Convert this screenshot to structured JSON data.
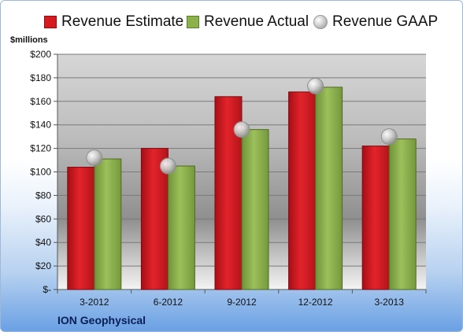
{
  "chart_data": {
    "type": "bar",
    "unit_label": "$millions",
    "categories": [
      "3-2012",
      "6-2012",
      "9-2012",
      "12-2012",
      "3-2013"
    ],
    "series": [
      {
        "name": "Revenue Estimate",
        "kind": "bar",
        "color": "#d71920",
        "values": [
          104,
          120,
          164,
          168,
          122
        ]
      },
      {
        "name": "Revenue Actual",
        "kind": "bar",
        "color": "#8cb14b",
        "values": [
          111,
          105,
          136,
          172,
          128
        ]
      },
      {
        "name": "Revenue GAAP",
        "kind": "marker",
        "color": "#b0b0b0",
        "values": [
          112,
          105,
          136,
          173,
          130
        ]
      }
    ],
    "ylim": [
      0,
      200
    ],
    "yticks": [
      0,
      20,
      40,
      60,
      80,
      100,
      120,
      140,
      160,
      180,
      200
    ],
    "ytick_labels": [
      "$-",
      "$20",
      "$40",
      "$60",
      "$80",
      "$100",
      "$120",
      "$140",
      "$160",
      "$180",
      "$200"
    ],
    "grid": true,
    "legend_position": "top",
    "footer": "ION Geophysical"
  }
}
